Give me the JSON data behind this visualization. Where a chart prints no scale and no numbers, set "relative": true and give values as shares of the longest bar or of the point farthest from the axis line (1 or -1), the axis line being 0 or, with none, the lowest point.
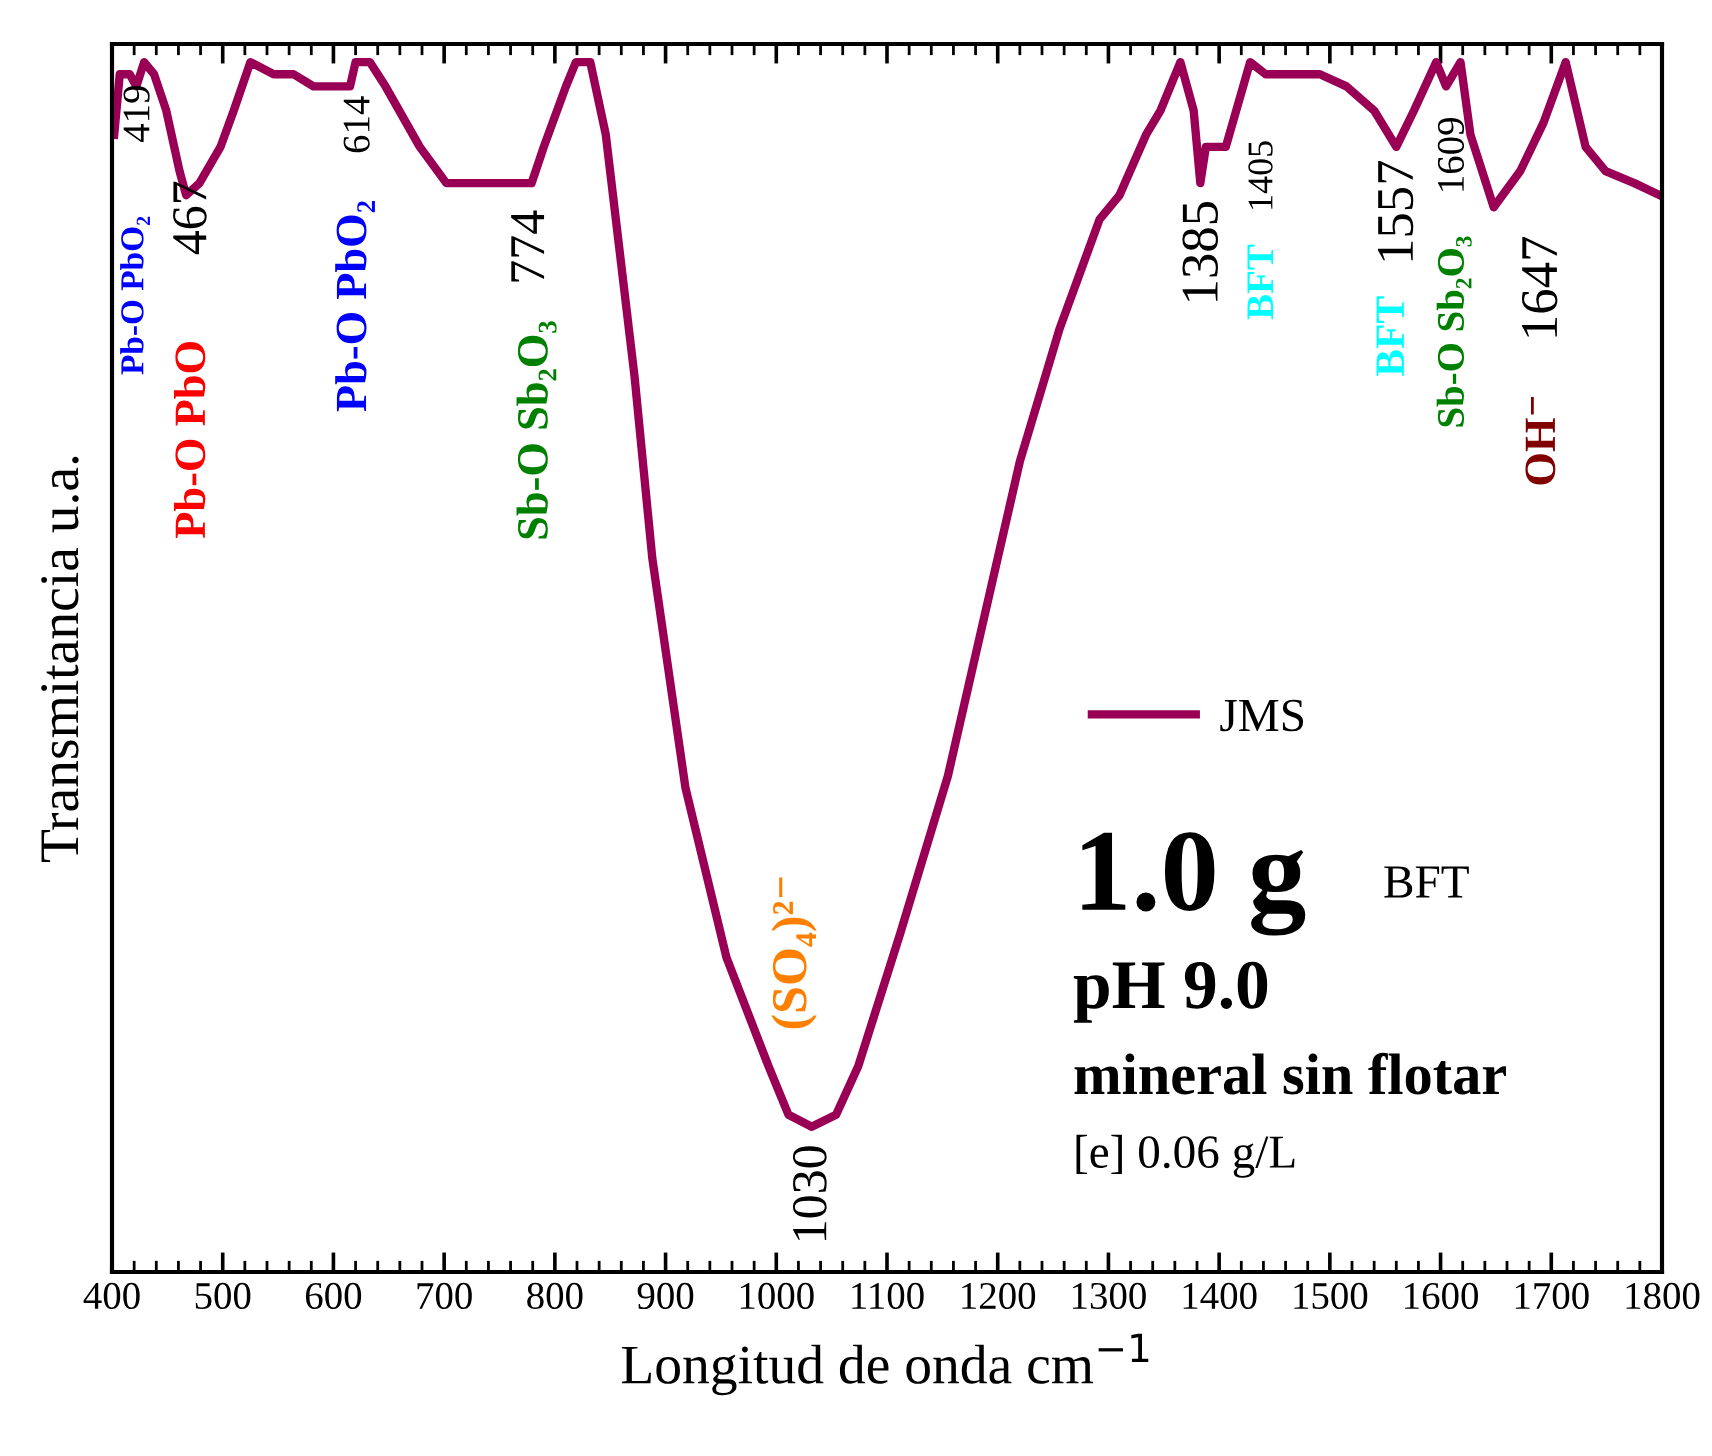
{
  "chart_data": {
    "type": "line",
    "relative": true,
    "xlabel": "Longitud de onda cm$^{−1}$",
    "ylabel": "Transmitancia u.a.",
    "xlim": [
      400,
      1800
    ],
    "xticks": [
      400,
      500,
      600,
      700,
      800,
      900,
      1000,
      1100,
      1200,
      1300,
      1400,
      1500,
      1600,
      1700,
      1800
    ],
    "tick_labels": "x",
    "grid": false,
    "legend": "right",
    "line_style": "solid",
    "marker": "none",
    "series": [
      {
        "name": "JMS",
        "color": "#990055",
        "x": [
          402,
          407,
          416,
          422,
          429,
          438,
          449,
          461,
          467,
          479,
          498,
          510,
          525,
          546,
          564,
          582,
          602,
          615,
          620,
          633,
          647,
          678,
          702,
          727,
          750,
          769,
          779,
          790,
          810,
          819,
          832,
          846,
          872,
          888,
          918,
          955,
          993,
          1011,
          1032,
          1054,
          1074,
          1112,
          1155,
          1200,
          1220,
          1256,
          1292,
          1310,
          1334,
          1347,
          1365,
          1377,
          1383,
          1388,
          1406,
          1428,
          1442,
          1491,
          1515,
          1540,
          1560,
          1576,
          1596,
          1605,
          1618,
          1627,
          1648,
          1672,
          1693,
          1713,
          1731,
          1749,
          1775,
          1798
        ],
        "values": [
          0.94,
          0.99,
          0.99,
          0.98,
          1.0,
          0.99,
          0.96,
          0.91,
          0.89,
          0.9,
          0.93,
          0.96,
          1.0,
          0.99,
          0.99,
          0.98,
          0.98,
          0.98,
          1.0,
          1.0,
          0.98,
          0.93,
          0.9,
          0.9,
          0.9,
          0.9,
          0.9,
          0.93,
          0.98,
          1.0,
          1.0,
          0.94,
          0.74,
          0.59,
          0.4,
          0.26,
          0.17,
          0.13,
          0.12,
          0.13,
          0.17,
          0.28,
          0.41,
          0.59,
          0.67,
          0.78,
          0.87,
          0.89,
          0.94,
          0.96,
          1.0,
          0.96,
          0.9,
          0.93,
          0.93,
          1.0,
          0.99,
          0.99,
          0.98,
          0.96,
          0.93,
          0.96,
          1.0,
          0.98,
          1.0,
          0.94,
          0.88,
          0.91,
          0.95,
          1.0,
          0.93,
          0.91,
          0.9,
          0.89
        ]
      }
    ],
    "annotations": [
      "419",
      "Pb-O PbO₂",
      "467",
      "Pb-O PbO",
      "614",
      "Pb-O PbO₂",
      "774",
      "Sb-O Sb₂O₃",
      "(SO₄)²⁻",
      "1030",
      "1385",
      "1405",
      "BFT",
      "1557",
      "BFT",
      "1609",
      "Sb-O Sb₂O₃",
      "1647",
      "OH⁻",
      "1.0 g",
      "BFT",
      "pH 9.0",
      "mineral sin flotar",
      "[e] 0.06 g/L"
    ]
  }
}
